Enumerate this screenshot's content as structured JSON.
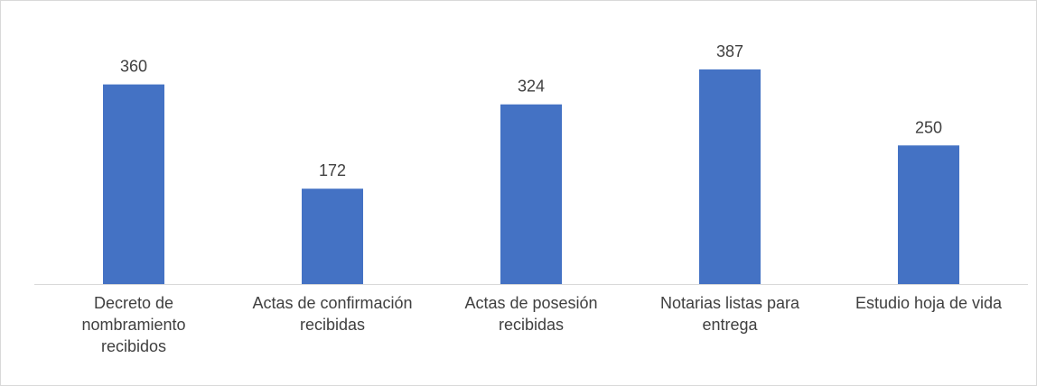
{
  "chart_data": {
    "type": "bar",
    "categories": [
      "Decreto de nombramiento recibidos",
      "Actas de confirmación recibidas",
      "Actas de posesión recibidas",
      "Notarias listas para entrega",
      "Estudio hoja de vida"
    ],
    "values": [
      360,
      172,
      324,
      387,
      250
    ],
    "color": "#4472c4"
  }
}
